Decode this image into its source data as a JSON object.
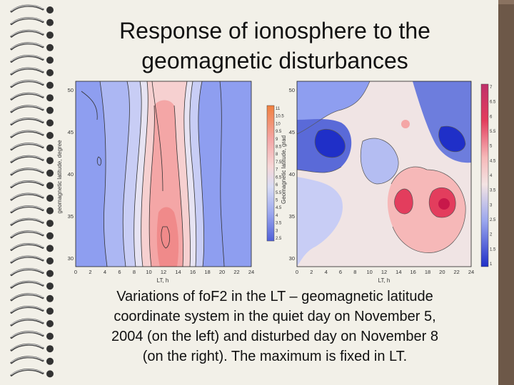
{
  "slide": {
    "title_lines": [
      "Response of ionosphere to the",
      "geomagnetic disturbances"
    ],
    "caption_lines": [
      "Variations of foF2 in the LT – geomagnetic latitude",
      "coordinate system in the quiet day on November 5,",
      "2004 (on the left) and disturbed day on November 8",
      "(on the right). The maximum is fixed in LT."
    ]
  },
  "left_map": {
    "ylabel": "geomagnetic latitude, degree",
    "xlabel": "LT, h",
    "x_ticks": [
      "0",
      "2",
      "4",
      "6",
      "8",
      "10",
      "12",
      "14",
      "16",
      "18",
      "20",
      "22",
      "24"
    ],
    "y_ticks": [
      "50",
      "45",
      "40",
      "35",
      "30"
    ],
    "colorbar_labels": [
      "11",
      "10.5",
      "10",
      "9.5",
      "9",
      "8.5",
      "8",
      "7.5",
      "7",
      "6.5",
      "6",
      "5.5",
      "5",
      "4.5",
      "4",
      "3.5",
      "3",
      "2.5"
    ]
  },
  "right_map": {
    "ylabel": "Geomagnetic latitude, grad",
    "xlabel": "LT, h",
    "x_ticks": [
      "0",
      "2",
      "4",
      "6",
      "8",
      "10",
      "12",
      "14",
      "16",
      "18",
      "20",
      "22",
      "24"
    ],
    "y_ticks": [
      "50",
      "45",
      "40",
      "35",
      "30"
    ],
    "colorbar_labels": [
      "7",
      "6.5",
      "6",
      "5.5",
      "5",
      "4.5",
      "4",
      "3.5",
      "3",
      "2.5",
      "2",
      "1.5",
      "1"
    ]
  },
  "colors": {
    "cool": "#8e9ef0",
    "deep_blue": "#1f2fc8",
    "warm": "#f4a6a6",
    "hot": "#e33d5d",
    "paper": "#f2f0e8"
  }
}
